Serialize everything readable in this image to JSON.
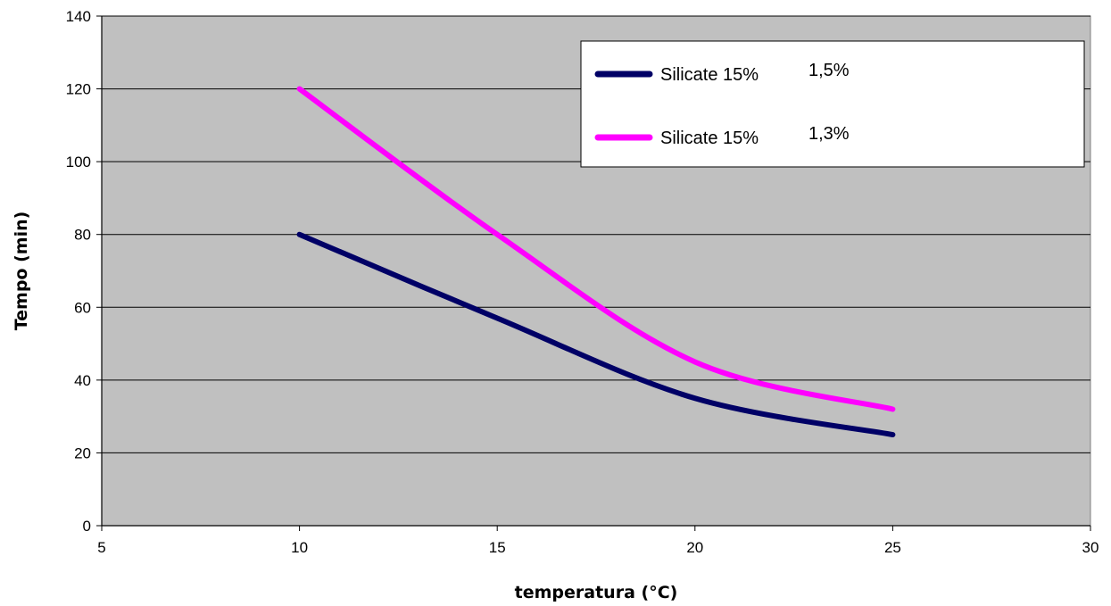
{
  "chart_data": {
    "type": "line",
    "title": "",
    "xlabel": "temperatura (°C)",
    "ylabel": "Tempo (min)",
    "xlim": [
      5,
      30
    ],
    "ylim": [
      0,
      140
    ],
    "xticks": [
      5,
      10,
      15,
      20,
      25,
      30
    ],
    "yticks": [
      0,
      20,
      40,
      60,
      80,
      100,
      120,
      140
    ],
    "grid": "horizontal",
    "legend_position": "top-right",
    "plot_background": "#c0c0c0",
    "series": [
      {
        "name": "Silicate 15%",
        "label_suffix": "1,5%",
        "color": "#000066",
        "x": [
          10,
          15,
          20,
          25
        ],
        "y": [
          80,
          57,
          35,
          25
        ]
      },
      {
        "name": "Silicate 15%",
        "label_suffix": "1,3%",
        "color": "#ff00ff",
        "x": [
          10,
          15,
          20,
          25
        ],
        "y": [
          120,
          80,
          45,
          32
        ]
      }
    ]
  }
}
